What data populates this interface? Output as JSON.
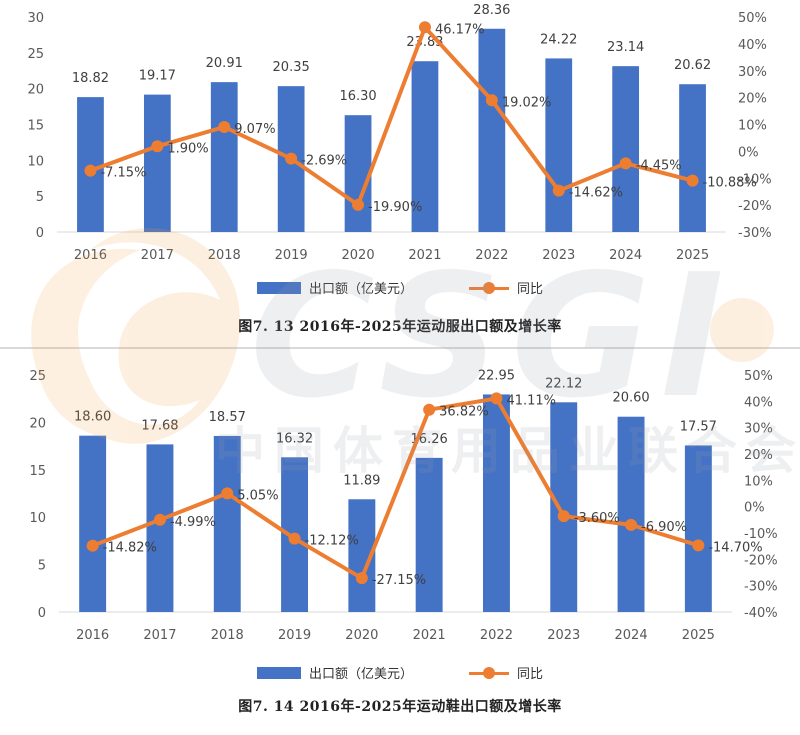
{
  "chart_data": [
    {
      "type": "bar+line",
      "title": "图7. 13  2016年-2025年运动服出口额及增长率",
      "categories": [
        "2016",
        "2017",
        "2018",
        "2019",
        "2020",
        "2021",
        "2022",
        "2023",
        "2024",
        "2025"
      ],
      "series": [
        {
          "name": "出口额（亿美元）",
          "type": "bar",
          "axis": "left",
          "color": "#4472c4",
          "values": [
            18.82,
            19.17,
            20.91,
            20.35,
            16.3,
            23.83,
            28.36,
            24.22,
            23.14,
            20.62
          ],
          "labels": [
            "18.82",
            "19.17",
            "20.91",
            "20.35",
            "16.30",
            "23.83",
            "28.36",
            "24.22",
            "23.14",
            "20.62"
          ]
        },
        {
          "name": "同比",
          "type": "line",
          "axis": "right",
          "color": "#ed7d31",
          "values": [
            -7.15,
            1.9,
            9.07,
            -2.69,
            -19.9,
            46.17,
            19.02,
            -14.62,
            -4.45,
            -10.88
          ],
          "labels": [
            "-7.15%",
            "1.90%",
            "9.07%",
            "-2.69%",
            "-19.90%",
            "46.17%",
            "19.02%",
            "-14.62%",
            "-4.45%",
            "-10.88%"
          ]
        }
      ],
      "y_left": {
        "min": 0,
        "max": 30,
        "ticks": [
          "0",
          "5",
          "10",
          "15",
          "20",
          "25",
          "30"
        ]
      },
      "y_right": {
        "min": -30,
        "max": 50,
        "ticks": [
          "-30%",
          "-20%",
          "-10%",
          "0%",
          "10%",
          "20%",
          "30%",
          "40%",
          "50%"
        ]
      },
      "grid": false,
      "legend_position": "bottom"
    },
    {
      "type": "bar+line",
      "title": "图7. 14  2016年-2025年运动鞋出口额及增长率",
      "categories": [
        "2016",
        "2017",
        "2018",
        "2019",
        "2020",
        "2021",
        "2022",
        "2023",
        "2024",
        "2025"
      ],
      "series": [
        {
          "name": "出口额（亿美元）",
          "type": "bar",
          "axis": "left",
          "color": "#4472c4",
          "values": [
            18.6,
            17.68,
            18.57,
            16.32,
            11.89,
            16.26,
            22.95,
            22.12,
            20.6,
            17.57
          ],
          "labels": [
            "18.60",
            "17.68",
            "18.57",
            "16.32",
            "11.89",
            "16.26",
            "22.95",
            "22.12",
            "20.60",
            "17.57"
          ]
        },
        {
          "name": "同比",
          "type": "line",
          "axis": "right",
          "color": "#ed7d31",
          "values": [
            -14.82,
            -4.99,
            5.05,
            -12.12,
            -27.15,
            36.82,
            41.11,
            -3.6,
            -6.9,
            -14.7
          ],
          "labels": [
            "-14.82%",
            "-4.99%",
            "5.05%",
            "-12.12%",
            "-27.15%",
            "36.82%",
            "41.11%",
            "-3.60%",
            "-6.90%",
            "-14.70%"
          ]
        }
      ],
      "y_left": {
        "min": 0,
        "max": 25,
        "ticks": [
          "0",
          "5",
          "10",
          "15",
          "20",
          "25"
        ]
      },
      "y_right": {
        "min": -40,
        "max": 50,
        "ticks": [
          "-40%",
          "-30%",
          "-20%",
          "-10%",
          "0%",
          "10%",
          "20%",
          "30%",
          "40%",
          "50%"
        ]
      },
      "grid": false,
      "legend_position": "bottom"
    }
  ],
  "watermark": {
    "logo_text": "CSGI",
    "org_name": "中国体育用品业联合会"
  }
}
